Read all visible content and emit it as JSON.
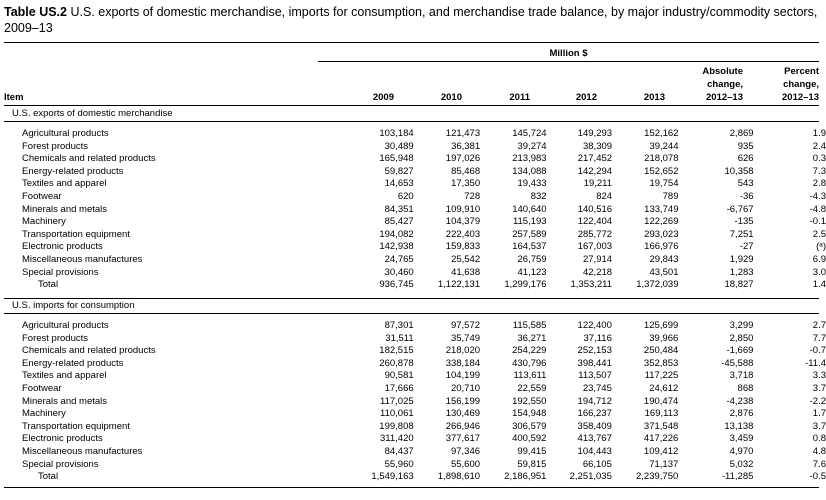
{
  "table": {
    "title_bold": "Table US.2",
    "title_rest": " U.S. exports of domestic merchandise, imports for consumption, and merchandise trade balance, by major industry/commodity sectors, 2009–13",
    "units_header": "Million $",
    "col_item": "Item",
    "years": [
      "2009",
      "2010",
      "2011",
      "2012",
      "2013"
    ],
    "abs_change_header": [
      "Absolute",
      "change,",
      "2012–13"
    ],
    "pct_change_header": [
      "Percent",
      "change,",
      "2012–13"
    ]
  },
  "exports": {
    "label": "U.S. exports of domestic merchandise",
    "rows": [
      [
        "Agricultural products",
        "103,184",
        "121,473",
        "145,724",
        "149,293",
        "152,162",
        "2,869",
        "1.9"
      ],
      [
        "Forest products",
        "30,489",
        "36,381",
        "39,274",
        "38,309",
        "39,244",
        "935",
        "2.4"
      ],
      [
        "Chemicals and related products",
        "165,948",
        "197,026",
        "213,983",
        "217,452",
        "218,078",
        "626",
        "0.3"
      ],
      [
        "Energy-related products",
        "59,827",
        "85,468",
        "134,088",
        "142,294",
        "152,652",
        "10,358",
        "7.3"
      ],
      [
        "Textiles and apparel",
        "14,653",
        "17,350",
        "19,433",
        "19,211",
        "19,754",
        "543",
        "2.8"
      ],
      [
        "Footwear",
        "620",
        "728",
        "832",
        "824",
        "789",
        "-36",
        "-4.3"
      ],
      [
        "Minerals and metals",
        "84,351",
        "109,910",
        "140,640",
        "140,516",
        "133,749",
        "-6,767",
        "-4.8"
      ],
      [
        "Machinery",
        "85,427",
        "104,379",
        "115,193",
        "122,404",
        "122,269",
        "-135",
        "-0.1"
      ],
      [
        "Transportation equipment",
        "194,082",
        "222,403",
        "257,589",
        "285,772",
        "293,023",
        "7,251",
        "2.5"
      ],
      [
        "Electronic products",
        "142,938",
        "159,833",
        "164,537",
        "167,003",
        "166,976",
        "-27",
        "(ᵃ)"
      ],
      [
        "Miscellaneous manufactures",
        "24,765",
        "25,542",
        "26,759",
        "27,914",
        "29,843",
        "1,929",
        "6.9"
      ],
      [
        "Special provisions",
        "30,460",
        "41,638",
        "41,123",
        "42,218",
        "43,501",
        "1,283",
        "3.0"
      ]
    ],
    "total": [
      "Total",
      "936,745",
      "1,122,131",
      "1,299,176",
      "1,353,211",
      "1,372,039",
      "18,827",
      "1.4"
    ]
  },
  "imports": {
    "label": "U.S. imports for consumption",
    "rows": [
      [
        "Agricultural products",
        "87,301",
        "97,572",
        "115,585",
        "122,400",
        "125,699",
        "3,299",
        "2.7"
      ],
      [
        "Forest products",
        "31,511",
        "35,749",
        "36,271",
        "37,116",
        "39,966",
        "2,850",
        "7.7"
      ],
      [
        "Chemicals and related products",
        "182,515",
        "218,020",
        "254,229",
        "252,153",
        "250,484",
        "-1,669",
        "-0.7"
      ],
      [
        "Energy-related products",
        "260,878",
        "338,184",
        "430,796",
        "398,441",
        "352,853",
        "-45,588",
        "-11.4"
      ],
      [
        "Textiles and apparel",
        "90,581",
        "104,199",
        "113,611",
        "113,507",
        "117,225",
        "3,718",
        "3.3"
      ],
      [
        "Footwear",
        "17,666",
        "20,710",
        "22,559",
        "23,745",
        "24,612",
        "868",
        "3.7"
      ],
      [
        "Minerals and metals",
        "117,025",
        "156,199",
        "192,550",
        "194,712",
        "190,474",
        "-4,238",
        "-2.2"
      ],
      [
        "Machinery",
        "110,061",
        "130,469",
        "154,948",
        "166,237",
        "169,113",
        "2,876",
        "1.7"
      ],
      [
        "Transportation equipment",
        "199,808",
        "266,946",
        "306,579",
        "358,409",
        "371,548",
        "13,138",
        "3.7"
      ],
      [
        "Electronic products",
        "311,420",
        "377,617",
        "400,592",
        "413,767",
        "417,226",
        "3,459",
        "0.8"
      ],
      [
        "Miscellaneous manufactures",
        "84,437",
        "97,346",
        "99,415",
        "104,443",
        "109,412",
        "4,970",
        "4.8"
      ],
      [
        "Special provisions",
        "55,960",
        "55,600",
        "59,815",
        "66,105",
        "71,137",
        "5,032",
        "7.6"
      ]
    ],
    "total": [
      "Total",
      "1,549,163",
      "1,898,610",
      "2,186,951",
      "2,251,035",
      "2,239,750",
      "-11,285",
      "-0.5"
    ]
  }
}
